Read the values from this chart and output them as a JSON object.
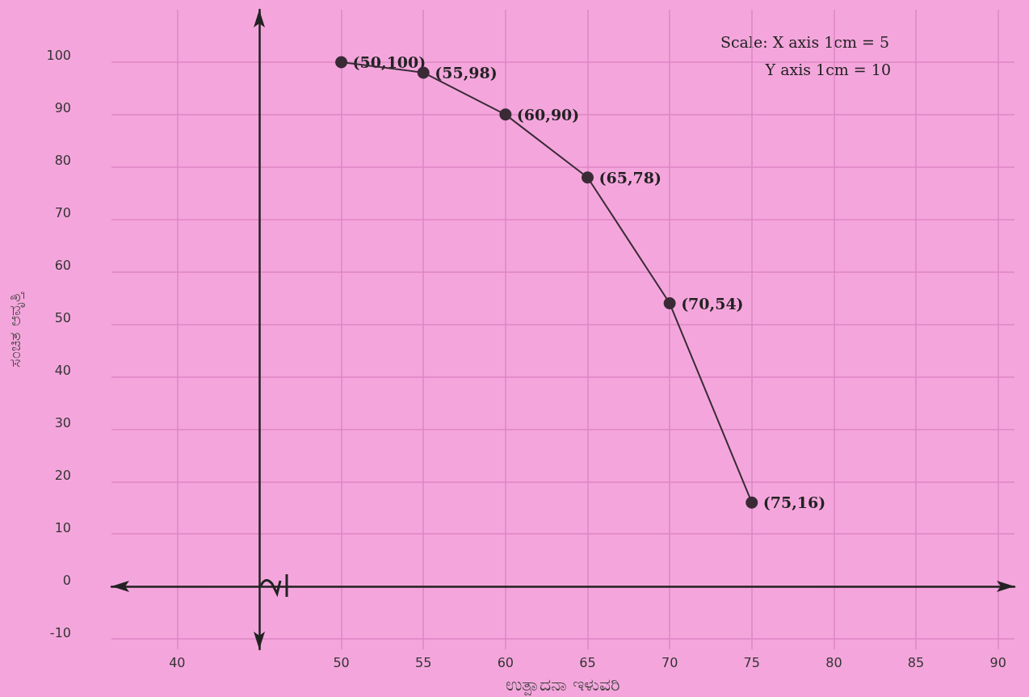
{
  "chart_data": {
    "type": "line",
    "xlabel": "ಉತ್ಪಾದನಾ ಇಳುವರಿ",
    "ylabel": "ಸಂಚಿತ ಆವೃತ್ತಿ",
    "x": [
      50,
      55,
      60,
      65,
      70,
      75
    ],
    "series": [
      {
        "color": "#3a2a36",
        "values": [
          100,
          98,
          90,
          78,
          54,
          16
        ]
      }
    ],
    "xlim": [
      36,
      91
    ],
    "xticks": [
      40,
      {
        "value": 45,
        "label": null
      },
      50,
      55,
      60,
      65,
      70,
      75,
      80,
      85,
      90
    ],
    "ylim": [
      -12,
      110
    ],
    "yticks": [
      -10,
      0,
      10,
      20,
      30,
      40,
      50,
      60,
      70,
      80,
      90,
      100
    ],
    "grid": true,
    "marker": "circle",
    "line_style": "solid",
    "annotations": [
      "Scale: X axis 1cm = 5",
      "Y axis 1cm = 10",
      {
        "text": "(50,100)",
        "x": 50,
        "y": 100
      },
      {
        "text": "(55,98)",
        "x": 55,
        "y": 98
      },
      {
        "text": "(60,90)",
        "x": 60,
        "y": 90
      },
      {
        "text": "(65,78)",
        "x": 65,
        "y": 78
      },
      {
        "text": "(70,54)",
        "x": 70,
        "y": 54
      },
      {
        "text": "(75,16)",
        "x": 75,
        "y": 16
      }
    ]
  }
}
